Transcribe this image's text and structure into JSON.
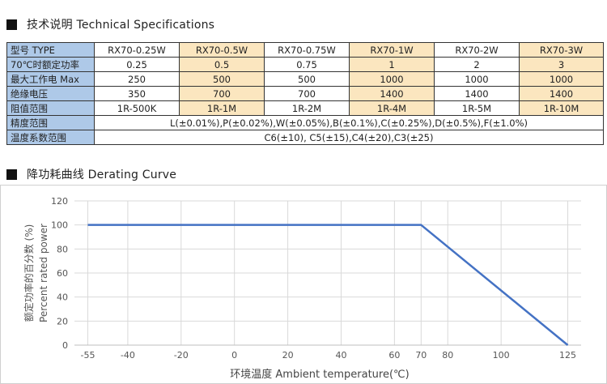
{
  "spec_section": {
    "title": "技术说明  Technical Specifications"
  },
  "table": {
    "rows": [
      {
        "label": "型号  TYPE",
        "cells": [
          "RX70-0.25W",
          "RX70-0.5W",
          "RX70-0.75W",
          "RX70-1W",
          "RX70-2W",
          "RX70-3W"
        ]
      },
      {
        "label": "70℃时额定功率",
        "cells": [
          "0.25",
          "0.5",
          "0.75",
          "1",
          "2",
          "3"
        ]
      },
      {
        "label": "最大工作电 Max",
        "cells": [
          "250",
          "500",
          "500",
          "1000",
          "1000",
          "1000"
        ]
      },
      {
        "label": "绝缘电压",
        "cells": [
          "350",
          "700",
          "700",
          "1400",
          "1400",
          "1400"
        ]
      },
      {
        "label": "阻值范围",
        "cells": [
          "1R-500K",
          "1R-1M",
          "1R-2M",
          "1R-4M",
          "1R-5M",
          "1R-10M"
        ]
      }
    ],
    "precision": {
      "label": "精度范围",
      "value": "L(±0.01%),P(±0.02%),W(±0.05%),B(±0.1%),C(±0.25%),D(±0.5%),F(±1.0%)"
    },
    "tcr": {
      "label": "温度系数范围",
      "value": "C6(±10), C5(±15),C4(±20),C3(±25)"
    },
    "highlight_color": "#fbe6bf",
    "header_color": "#aec9e8"
  },
  "curve_section": {
    "title": "降功耗曲线 Derating Curve"
  },
  "chart_data": {
    "type": "line",
    "title": "",
    "xlabel": "环境温度 Ambient temperature(℃)",
    "ylabel_cn": "额定功率的百分数  (%)",
    "ylabel_en": "Percent rated power",
    "x_ticks": [
      -55,
      -40,
      -20,
      0,
      20,
      40,
      60,
      70,
      80,
      100,
      125
    ],
    "y_ticks": [
      0,
      20,
      40,
      60,
      80,
      100,
      120
    ],
    "xlim": [
      -60,
      130
    ],
    "ylim": [
      0,
      120
    ],
    "grid": true,
    "series": [
      {
        "x": [
          -55,
          70,
          125
        ],
        "y": [
          100,
          100,
          0
        ],
        "color": "#4472c4"
      }
    ]
  }
}
